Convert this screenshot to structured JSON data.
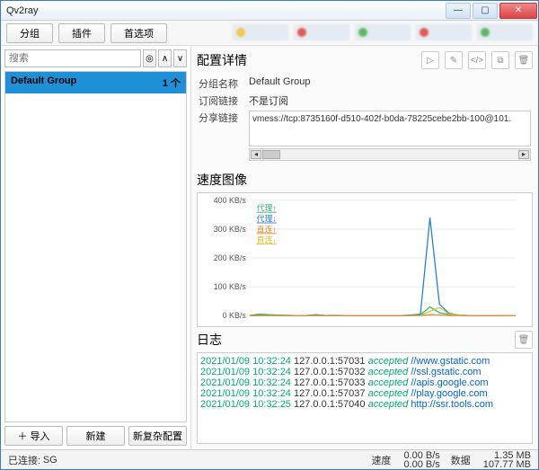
{
  "window": {
    "title": "Qv2ray"
  },
  "toolbar": {
    "group": "分组",
    "plugin": "插件",
    "prefs": "首选项"
  },
  "blurtabs": [
    {
      "dot": "#f2c94c"
    },
    {
      "dot": "#e85555"
    },
    {
      "dot": "#5eb85e"
    },
    {
      "dot": "#e85555"
    },
    {
      "dot": "#5eb85e"
    }
  ],
  "left": {
    "search_placeholder": "搜索",
    "group_name": "Default Group",
    "group_count": "1 个",
    "import": "＋ 导入",
    "new": "新建",
    "new_complex": "新复杂配置"
  },
  "details": {
    "title": "配置详情",
    "name_lbl": "分组名称",
    "name_val": "Default Group",
    "sub_lbl": "订阅链接",
    "sub_val": "不是订阅",
    "share_lbl": "分享链接",
    "share_val": "vmess://tcp:8735160f-d510-402f-b0da-78225cebe2bb-100@101."
  },
  "speed": {
    "title": "速度图像",
    "yticks": [
      "400 KB/s",
      "300 KB/s",
      "200 KB/s",
      "100 KB/s",
      "0 KB/s"
    ],
    "ylim": [
      0,
      400
    ],
    "legend": [
      {
        "label": "代理↑",
        "color": "#3bb273"
      },
      {
        "label": "代理↓",
        "color": "#2a7fd4"
      },
      {
        "label": "直连↑",
        "color": "#d98c3a"
      },
      {
        "label": "直连↓",
        "color": "#d4c12a"
      }
    ],
    "series": {
      "proxy_down": {
        "color": "#2a7fd4",
        "points": [
          0,
          0,
          2,
          1,
          0,
          0,
          0,
          3,
          0,
          1,
          0,
          0,
          0,
          0,
          0,
          0,
          0,
          2,
          5,
          340,
          40,
          8,
          2,
          0,
          0,
          0,
          0,
          0,
          0
        ]
      },
      "proxy_up": {
        "color": "#3bb273",
        "points": [
          0,
          5,
          3,
          2,
          1,
          0,
          0,
          2,
          0,
          0,
          0,
          0,
          0,
          0,
          0,
          0,
          0,
          1,
          3,
          30,
          10,
          4,
          1,
          0,
          0,
          0,
          0,
          0,
          0
        ]
      },
      "direct_down": {
        "color": "#d4c12a",
        "points": [
          0,
          0,
          0,
          0,
          0,
          0,
          0,
          0,
          0,
          0,
          0,
          0,
          0,
          0,
          0,
          0,
          0,
          0,
          1,
          15,
          28,
          6,
          2,
          0,
          0,
          0,
          0,
          0,
          0
        ]
      },
      "direct_up": {
        "color": "#d98c3a",
        "points": [
          0,
          0,
          0,
          0,
          0,
          0,
          0,
          0,
          0,
          0,
          0,
          0,
          0,
          0,
          0,
          0,
          0,
          0,
          0,
          3,
          2,
          0,
          0,
          0,
          0,
          0,
          0,
          0,
          0
        ]
      }
    },
    "background": "#ffffff",
    "grid": "#e8e8e8"
  },
  "log": {
    "title": "日志",
    "lines": [
      {
        "ts": "2021/01/09 10:32:24",
        "addr": "127.0.0.1:57031",
        "st": "accepted",
        "url": "//www.gstatic.com"
      },
      {
        "ts": "2021/01/09 10:32:24",
        "addr": "127.0.0.1:57032",
        "st": "accepted",
        "url": "//ssl.gstatic.com"
      },
      {
        "ts": "2021/01/09 10:32:24",
        "addr": "127.0.0.1:57033",
        "st": "accepted",
        "url": "//apis.google.com"
      },
      {
        "ts": "2021/01/09 10:32:24",
        "addr": "127.0.0.1:57037",
        "st": "accepted",
        "url": "//play.google.com"
      },
      {
        "ts": "2021/01/09 10:32:25",
        "addr": "127.0.0.1:57040",
        "st": "accepted",
        "url": "http://ssr.tools.com"
      }
    ]
  },
  "status": {
    "connected_lbl": "已连接:",
    "connected_val": "SG",
    "speed_lbl": "速度",
    "speed_up": "0.00 B/s",
    "speed_down": "0.00 B/s",
    "data_lbl": "数据",
    "data_up": "1.35 MB",
    "data_down": "107.77 MB"
  }
}
